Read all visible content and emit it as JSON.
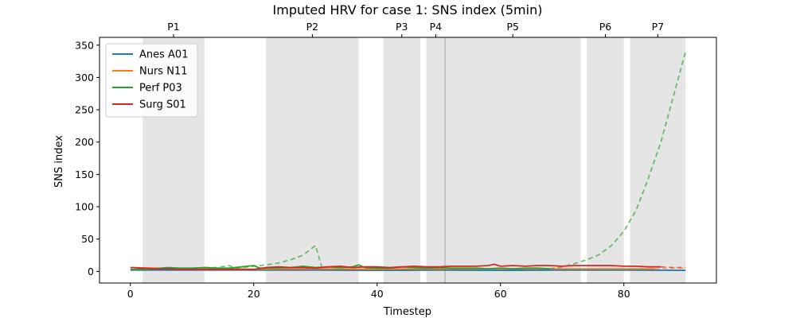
{
  "chart_data": {
    "type": "line",
    "title": "Imputed HRV for case 1: SNS index (5min)",
    "xlabel": "Timestep",
    "ylabel": "SNS index",
    "xlim": [
      -5,
      95
    ],
    "ylim": [
      -18,
      362
    ],
    "xticks": [
      0,
      20,
      40,
      60,
      80
    ],
    "yticks": [
      0,
      50,
      100,
      150,
      200,
      250,
      300,
      350
    ],
    "legend_position": "upper-left",
    "phases": [
      {
        "label": "P1",
        "start": 2,
        "end": 12
      },
      {
        "label": "P2",
        "start": 22,
        "end": 37
      },
      {
        "label": "P3",
        "start": 41,
        "end": 47
      },
      {
        "label": "P4",
        "start": 48,
        "end": 51
      },
      {
        "label": "P5",
        "start": 51,
        "end": 73
      },
      {
        "label": "P6",
        "start": 74,
        "end": 80
      },
      {
        "label": "P7",
        "start": 81,
        "end": 90
      }
    ],
    "vline_x": 51,
    "series": [
      {
        "name": "Anes A01",
        "color": "#1f77b4",
        "observed": [
          [
            0,
            2
          ],
          [
            10,
            2
          ],
          [
            20,
            2
          ],
          [
            30,
            2
          ],
          [
            40,
            1.5
          ],
          [
            50,
            2
          ],
          [
            60,
            1.5
          ],
          [
            70,
            2
          ],
          [
            80,
            2
          ],
          [
            90,
            1.5
          ]
        ],
        "imputed": []
      },
      {
        "name": "Nurs N11",
        "color": "#ff7f0e",
        "observed": [
          [
            0,
            6
          ],
          [
            5,
            5
          ],
          [
            10,
            4
          ],
          [
            15,
            4
          ],
          [
            20,
            3.5
          ],
          [
            25,
            4
          ],
          [
            30,
            4
          ],
          [
            35,
            4
          ],
          [
            40,
            3.5
          ],
          [
            45,
            4
          ],
          [
            50,
            4
          ],
          [
            55,
            4
          ],
          [
            60,
            4
          ],
          [
            65,
            4
          ],
          [
            70,
            4
          ],
          [
            75,
            4
          ],
          [
            80,
            4
          ],
          [
            85,
            4
          ]
        ],
        "imputed": [
          [
            85,
            4
          ],
          [
            88,
            5
          ],
          [
            90,
            5
          ]
        ]
      },
      {
        "name": "Perf P03",
        "color": "#2ca02c",
        "observed": [
          [
            0,
            3
          ],
          [
            2,
            3
          ],
          [
            4,
            4
          ],
          [
            6,
            6
          ],
          [
            8,
            5
          ],
          [
            10,
            5
          ],
          [
            12,
            6
          ],
          [
            14,
            5
          ],
          [
            16,
            5
          ],
          [
            18,
            7
          ],
          [
            20,
            9
          ],
          [
            21,
            5
          ],
          [
            26,
            6
          ],
          [
            28,
            8
          ],
          [
            30,
            6
          ],
          [
            32,
            7
          ],
          [
            34,
            6
          ],
          [
            36,
            7
          ],
          [
            37,
            10
          ],
          [
            38,
            6
          ],
          [
            40,
            5
          ],
          [
            42,
            5
          ],
          [
            44,
            7
          ],
          [
            46,
            6
          ],
          [
            48,
            5
          ],
          [
            50,
            6
          ],
          [
            52,
            5
          ],
          [
            54,
            5
          ],
          [
            56,
            5
          ],
          [
            58,
            4
          ],
          [
            60,
            5
          ],
          [
            62,
            4
          ],
          [
            64,
            5
          ],
          [
            66,
            5
          ],
          [
            68,
            4
          ]
        ],
        "imputed": [
          [
            12,
            6
          ],
          [
            14,
            6
          ],
          [
            16,
            9
          ],
          [
            17,
            5
          ],
          [
            20,
            8
          ],
          [
            22,
            10
          ],
          [
            24,
            13
          ],
          [
            26,
            18
          ],
          [
            28,
            25
          ],
          [
            30,
            40
          ],
          [
            31,
            8
          ],
          [
            68,
            4
          ],
          [
            70,
            7
          ],
          [
            72,
            12
          ],
          [
            74,
            18
          ],
          [
            76,
            26
          ],
          [
            78,
            40
          ],
          [
            80,
            62
          ],
          [
            82,
            95
          ],
          [
            84,
            145
          ],
          [
            86,
            200
          ],
          [
            88,
            270
          ],
          [
            90,
            340
          ]
        ]
      },
      {
        "name": "Surg S01",
        "color": "#d62728",
        "observed": [
          [
            0,
            6
          ],
          [
            2,
            5
          ],
          [
            4,
            4
          ],
          [
            6,
            4
          ],
          [
            8,
            3
          ],
          [
            10,
            3
          ],
          [
            12,
            3
          ],
          [
            14,
            3
          ],
          [
            16,
            3
          ],
          [
            18,
            3
          ],
          [
            20,
            3
          ],
          [
            22,
            6
          ],
          [
            24,
            7
          ],
          [
            26,
            6
          ],
          [
            28,
            6
          ],
          [
            30,
            5
          ],
          [
            32,
            7
          ],
          [
            34,
            8
          ],
          [
            36,
            6
          ],
          [
            38,
            7
          ],
          [
            40,
            7
          ],
          [
            42,
            6
          ],
          [
            44,
            7
          ],
          [
            46,
            8
          ],
          [
            48,
            7
          ],
          [
            50,
            7
          ],
          [
            52,
            8
          ],
          [
            54,
            8
          ],
          [
            56,
            8
          ],
          [
            58,
            9
          ],
          [
            59,
            11
          ],
          [
            60,
            8
          ],
          [
            62,
            9
          ],
          [
            64,
            8
          ],
          [
            66,
            9
          ],
          [
            68,
            9
          ],
          [
            70,
            8
          ],
          [
            72,
            9
          ],
          [
            74,
            9
          ],
          [
            76,
            9
          ],
          [
            78,
            9
          ],
          [
            80,
            8
          ],
          [
            82,
            8
          ],
          [
            84,
            7
          ],
          [
            86,
            7
          ]
        ],
        "imputed": [
          [
            86,
            7
          ],
          [
            88,
            6
          ],
          [
            90,
            6
          ]
        ]
      }
    ]
  }
}
